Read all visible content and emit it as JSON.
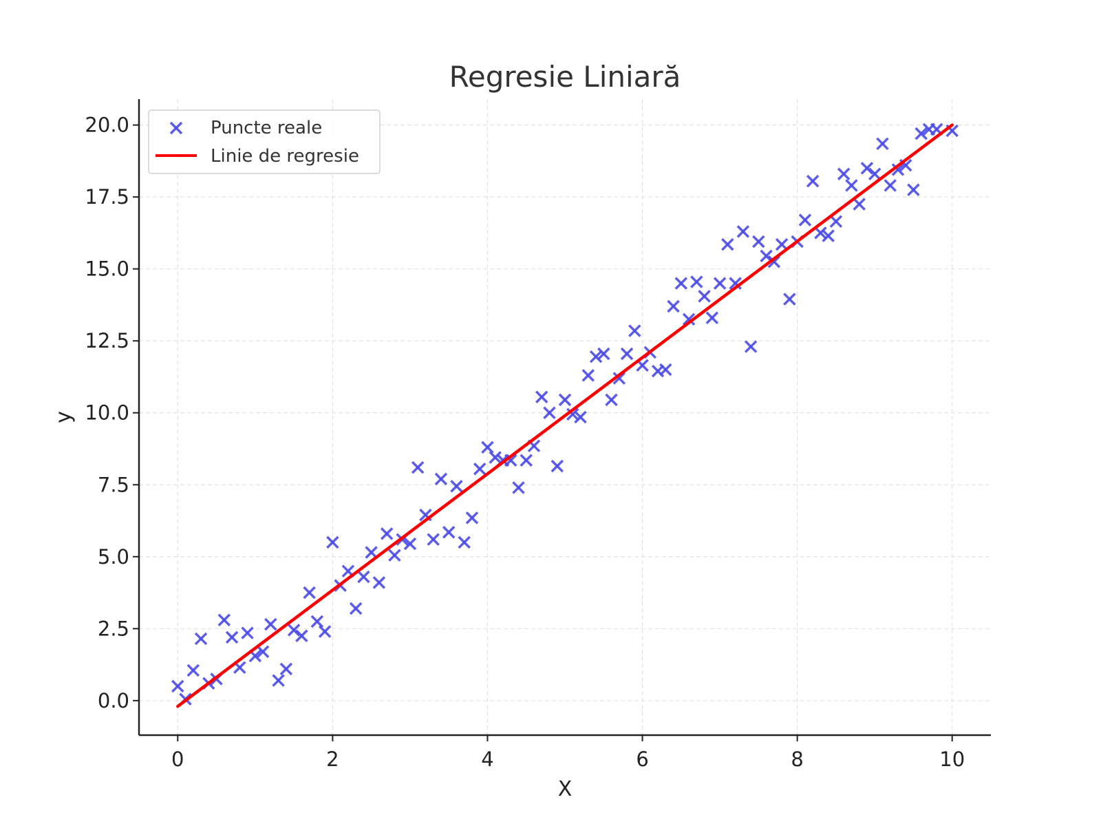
{
  "chart_data": {
    "type": "scatter",
    "title": "Regresie Liniară",
    "xlabel": "X",
    "ylabel": "y",
    "xlim": [
      -0.5,
      10.5
    ],
    "ylim": [
      -1.2,
      20.9
    ],
    "x_ticks": [
      0,
      2,
      4,
      6,
      8,
      10
    ],
    "y_ticks": [
      0.0,
      2.5,
      5.0,
      7.5,
      10.0,
      12.5,
      15.0,
      17.5,
      20.0
    ],
    "x_tick_labels": [
      "0",
      "2",
      "4",
      "6",
      "8",
      "10"
    ],
    "y_tick_labels": [
      "0.0",
      "2.5",
      "5.0",
      "7.5",
      "10.0",
      "12.5",
      "15.0",
      "17.5",
      "20.0"
    ],
    "grid": true,
    "legend_position": "top-left",
    "series": [
      {
        "name": "Puncte reale",
        "kind": "scatter",
        "marker": "x",
        "color": "#4a4ae8",
        "points": [
          [
            0.0,
            0.5
          ],
          [
            0.1,
            0.05
          ],
          [
            0.2,
            1.05
          ],
          [
            0.3,
            2.15
          ],
          [
            0.4,
            0.6
          ],
          [
            0.5,
            0.75
          ],
          [
            0.6,
            2.8
          ],
          [
            0.7,
            2.2
          ],
          [
            0.8,
            1.15
          ],
          [
            0.9,
            2.35
          ],
          [
            1.0,
            1.55
          ],
          [
            1.1,
            1.7
          ],
          [
            1.2,
            2.65
          ],
          [
            1.3,
            0.7
          ],
          [
            1.4,
            1.1
          ],
          [
            1.5,
            2.45
          ],
          [
            1.6,
            2.25
          ],
          [
            1.7,
            3.75
          ],
          [
            1.8,
            2.75
          ],
          [
            1.9,
            2.4
          ],
          [
            2.0,
            5.5
          ],
          [
            2.1,
            4.0
          ],
          [
            2.2,
            4.5
          ],
          [
            2.3,
            3.2
          ],
          [
            2.4,
            4.3
          ],
          [
            2.5,
            5.15
          ],
          [
            2.6,
            4.1
          ],
          [
            2.7,
            5.8
          ],
          [
            2.8,
            5.05
          ],
          [
            2.9,
            5.6
          ],
          [
            3.0,
            5.45
          ],
          [
            3.1,
            8.1
          ],
          [
            3.2,
            6.45
          ],
          [
            3.3,
            5.6
          ],
          [
            3.4,
            7.7
          ],
          [
            3.5,
            5.85
          ],
          [
            3.6,
            7.45
          ],
          [
            3.7,
            5.5
          ],
          [
            3.8,
            6.35
          ],
          [
            3.9,
            8.05
          ],
          [
            4.0,
            8.8
          ],
          [
            4.1,
            8.45
          ],
          [
            4.2,
            8.35
          ],
          [
            4.3,
            8.35
          ],
          [
            4.4,
            7.4
          ],
          [
            4.5,
            8.35
          ],
          [
            4.6,
            8.85
          ],
          [
            4.7,
            10.55
          ],
          [
            4.8,
            10.0
          ],
          [
            4.9,
            8.15
          ],
          [
            5.0,
            10.45
          ],
          [
            5.1,
            9.95
          ],
          [
            5.2,
            9.85
          ],
          [
            5.3,
            11.3
          ],
          [
            5.4,
            11.95
          ],
          [
            5.5,
            12.05
          ],
          [
            5.6,
            10.45
          ],
          [
            5.7,
            11.2
          ],
          [
            5.8,
            12.05
          ],
          [
            5.9,
            12.85
          ],
          [
            6.0,
            11.65
          ],
          [
            6.1,
            12.1
          ],
          [
            6.2,
            11.45
          ],
          [
            6.3,
            11.5
          ],
          [
            6.4,
            13.7
          ],
          [
            6.5,
            14.5
          ],
          [
            6.6,
            13.25
          ],
          [
            6.7,
            14.55
          ],
          [
            6.8,
            14.05
          ],
          [
            6.9,
            13.3
          ],
          [
            7.0,
            14.5
          ],
          [
            7.1,
            15.85
          ],
          [
            7.2,
            14.5
          ],
          [
            7.3,
            16.3
          ],
          [
            7.4,
            12.3
          ],
          [
            7.5,
            15.95
          ],
          [
            7.6,
            15.45
          ],
          [
            7.7,
            15.25
          ],
          [
            7.8,
            15.85
          ],
          [
            7.9,
            13.95
          ],
          [
            8.0,
            15.95
          ],
          [
            8.1,
            16.7
          ],
          [
            8.2,
            18.05
          ],
          [
            8.3,
            16.25
          ],
          [
            8.4,
            16.15
          ],
          [
            8.5,
            16.65
          ],
          [
            8.6,
            18.3
          ],
          [
            8.7,
            17.9
          ],
          [
            8.8,
            17.25
          ],
          [
            8.9,
            18.5
          ],
          [
            9.0,
            18.3
          ],
          [
            9.1,
            19.35
          ],
          [
            9.2,
            17.9
          ],
          [
            9.3,
            18.45
          ],
          [
            9.4,
            18.6
          ],
          [
            9.5,
            17.75
          ],
          [
            9.6,
            19.7
          ],
          [
            9.7,
            19.85
          ],
          [
            9.8,
            19.85
          ],
          [
            10.0,
            19.8
          ]
        ]
      },
      {
        "name": "Linie de regresie",
        "kind": "line",
        "color": "#ff0000",
        "points": [
          [
            0.0,
            -0.2
          ],
          [
            10.0,
            20.0
          ]
        ]
      }
    ]
  }
}
